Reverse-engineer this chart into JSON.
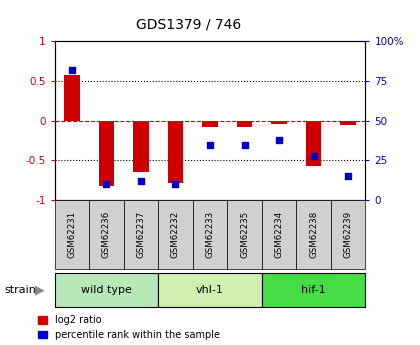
{
  "title": "GDS1379 / 746",
  "samples": [
    "GSM62231",
    "GSM62236",
    "GSM62237",
    "GSM62232",
    "GSM62233",
    "GSM62235",
    "GSM62234",
    "GSM62238",
    "GSM62239"
  ],
  "log2_ratio": [
    0.58,
    -0.82,
    -0.65,
    -0.78,
    -0.08,
    -0.08,
    -0.04,
    -0.57,
    -0.05
  ],
  "percentile_rank": [
    82,
    10,
    12,
    10,
    35,
    35,
    38,
    28,
    15
  ],
  "groups": [
    {
      "label": "wild type",
      "start": 0,
      "end": 3,
      "color": "#b8e8b8"
    },
    {
      "label": "vhl-1",
      "start": 3,
      "end": 6,
      "color": "#d0f0b0"
    },
    {
      "label": "hif-1",
      "start": 6,
      "end": 9,
      "color": "#44dd44"
    }
  ],
  "ylim_left": [
    -1,
    1
  ],
  "ylim_right": [
    0,
    100
  ],
  "bar_color": "#cc0000",
  "dot_color": "#0000cc",
  "background_color": "#ffffff",
  "plot_bg": "#ffffff",
  "sample_box_color": "#d0d0d0",
  "axis_label_color_left": "#cc0000",
  "axis_label_color_right": "#0000cc",
  "zero_line_color": "#cc0000",
  "legend_log2_label": "log2 ratio",
  "legend_pct_label": "percentile rank within the sample"
}
